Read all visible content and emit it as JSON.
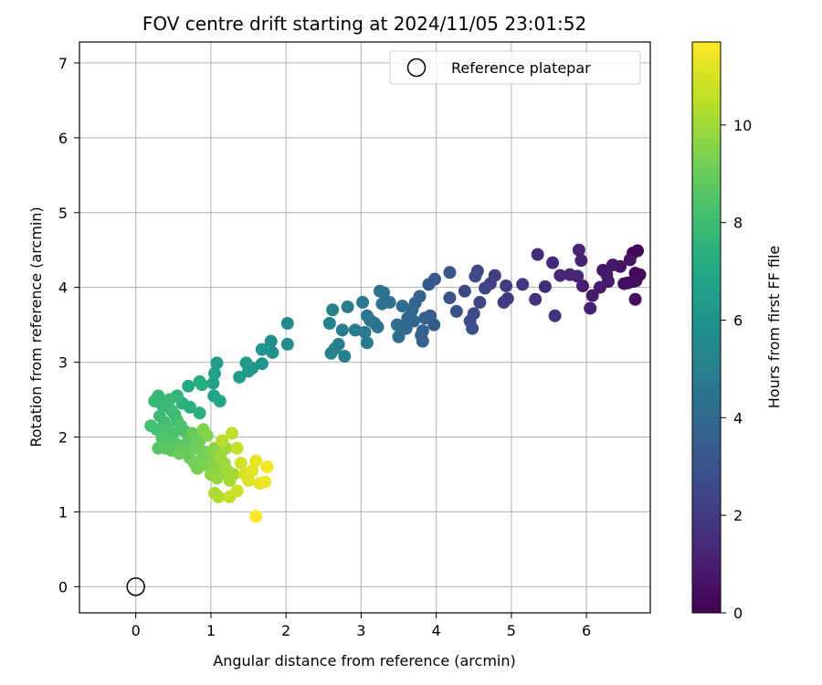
{
  "chart_data": {
    "type": "scatter",
    "title": "FOV centre drift starting at 2024/11/05 23:01:52",
    "xlabel": "Angular distance from reference (arcmin)",
    "ylabel": "Rotation from reference (arcmin)",
    "xlim": [
      -0.75,
      6.85
    ],
    "ylim": [
      -0.35,
      7.28
    ],
    "xticks": [
      "0",
      "1",
      "2",
      "3",
      "4",
      "5",
      "6"
    ],
    "yticks": [
      "0",
      "1",
      "2",
      "3",
      "4",
      "5",
      "6",
      "7"
    ],
    "grid": true,
    "legend": {
      "label": "Reference platepar",
      "placement": "top-right",
      "marker": "open-circle"
    },
    "reference_point": {
      "x": 0,
      "y": 0
    },
    "colorbar": {
      "label": "Hours from first FF file",
      "range": [
        0,
        11.7
      ],
      "ticks": [
        "0",
        "2",
        "4",
        "6",
        "8",
        "10"
      ],
      "colormap": "viridis"
    },
    "series": [
      {
        "points": [
          [
            6.68,
            4.49,
            0.1
          ],
          [
            6.62,
            4.46,
            0.2
          ],
          [
            6.65,
            4.19,
            0.2
          ],
          [
            6.71,
            4.17,
            0.3
          ],
          [
            6.66,
            4.09,
            0.3
          ],
          [
            6.55,
            4.06,
            0.4
          ],
          [
            6.62,
            4.08,
            0.4
          ],
          [
            6.5,
            4.05,
            0.5
          ],
          [
            6.65,
            3.84,
            0.5
          ],
          [
            6.58,
            4.37,
            0.6
          ],
          [
            6.45,
            4.28,
            0.6
          ],
          [
            6.35,
            4.3,
            0.7
          ],
          [
            6.22,
            4.23,
            0.7
          ],
          [
            6.27,
            4.17,
            0.8
          ],
          [
            6.29,
            4.08,
            0.8
          ],
          [
            6.18,
            4.0,
            0.9
          ],
          [
            6.08,
            3.89,
            0.9
          ],
          [
            6.05,
            3.72,
            1.0
          ],
          [
            5.95,
            4.02,
            1.0
          ],
          [
            5.9,
            4.5,
            1.1
          ],
          [
            5.93,
            4.36,
            1.1
          ],
          [
            5.88,
            4.15,
            1.2
          ],
          [
            5.78,
            4.17,
            1.3
          ],
          [
            5.65,
            4.16,
            1.3
          ],
          [
            5.55,
            4.33,
            1.4
          ],
          [
            5.35,
            4.44,
            1.5
          ],
          [
            5.45,
            4.01,
            1.5
          ],
          [
            5.32,
            3.84,
            1.6
          ],
          [
            5.58,
            3.62,
            1.7
          ],
          [
            5.15,
            4.04,
            1.8
          ],
          [
            4.95,
            3.85,
            1.9
          ],
          [
            4.9,
            3.8,
            2.0
          ],
          [
            4.93,
            4.02,
            2.1
          ],
          [
            4.78,
            4.16,
            2.2
          ],
          [
            4.72,
            4.05,
            2.2
          ],
          [
            4.65,
            3.99,
            2.3
          ],
          [
            4.58,
            3.8,
            2.4
          ],
          [
            4.52,
            4.15,
            2.5
          ],
          [
            4.55,
            4.22,
            2.5
          ],
          [
            4.38,
            3.95,
            2.6
          ],
          [
            4.5,
            3.65,
            2.7
          ],
          [
            4.45,
            3.55,
            2.8
          ],
          [
            4.48,
            3.45,
            2.8
          ],
          [
            4.27,
            3.68,
            2.9
          ],
          [
            4.18,
            3.86,
            3.0
          ],
          [
            4.18,
            4.2,
            3.1
          ],
          [
            3.98,
            4.11,
            3.2
          ],
          [
            3.9,
            4.04,
            3.3
          ],
          [
            3.97,
            3.5,
            3.4
          ],
          [
            3.92,
            3.62,
            3.4
          ],
          [
            3.85,
            3.59,
            3.5
          ],
          [
            3.82,
            3.42,
            3.6
          ],
          [
            3.82,
            3.28,
            3.6
          ],
          [
            3.8,
            3.36,
            3.7
          ],
          [
            3.78,
            3.88,
            3.8
          ],
          [
            3.72,
            3.79,
            3.8
          ],
          [
            3.68,
            3.7,
            3.9
          ],
          [
            3.7,
            3.55,
            3.9
          ],
          [
            3.62,
            3.59,
            4.0
          ],
          [
            3.6,
            3.45,
            4.1
          ],
          [
            3.55,
            3.75,
            4.1
          ],
          [
            3.48,
            3.5,
            4.2
          ],
          [
            3.5,
            3.34,
            4.2
          ],
          [
            3.38,
            3.8,
            4.3
          ],
          [
            3.3,
            3.93,
            4.3
          ],
          [
            3.25,
            3.95,
            4.4
          ],
          [
            3.28,
            3.78,
            4.4
          ],
          [
            3.22,
            3.47,
            4.5
          ],
          [
            3.18,
            3.52,
            4.5
          ],
          [
            3.12,
            3.56,
            4.6
          ],
          [
            3.08,
            3.62,
            4.6
          ],
          [
            3.05,
            3.4,
            4.7
          ],
          [
            3.02,
            3.8,
            4.7
          ],
          [
            3.08,
            3.26,
            4.8
          ],
          [
            2.92,
            3.43,
            4.8
          ],
          [
            2.82,
            3.74,
            4.9
          ],
          [
            2.75,
            3.43,
            4.9
          ],
          [
            2.78,
            3.08,
            5.0
          ],
          [
            2.7,
            3.24,
            5.0
          ],
          [
            2.62,
            3.7,
            5.1
          ],
          [
            2.65,
            3.18,
            5.1
          ],
          [
            2.58,
            3.52,
            5.2
          ],
          [
            2.6,
            3.12,
            5.2
          ],
          [
            2.02,
            3.52,
            5.5
          ],
          [
            2.02,
            3.24,
            5.6
          ],
          [
            1.8,
            3.28,
            5.7
          ],
          [
            1.82,
            3.13,
            5.8
          ],
          [
            1.68,
            3.17,
            5.9
          ],
          [
            1.68,
            2.98,
            6.0
          ],
          [
            1.55,
            2.92,
            6.1
          ],
          [
            1.5,
            2.88,
            6.2
          ],
          [
            1.47,
            2.99,
            6.3
          ],
          [
            1.38,
            2.8,
            6.4
          ],
          [
            1.08,
            2.99,
            6.5
          ],
          [
            1.05,
            2.85,
            6.6
          ],
          [
            1.03,
            2.72,
            6.7
          ],
          [
            1.04,
            2.55,
            6.8
          ],
          [
            1.12,
            2.48,
            6.9
          ],
          [
            0.85,
            2.74,
            7.0
          ],
          [
            0.7,
            2.68,
            7.1
          ],
          [
            0.88,
            2.7,
            7.2
          ],
          [
            0.72,
            2.4,
            7.3
          ],
          [
            0.85,
            2.32,
            7.4
          ],
          [
            0.62,
            2.45,
            7.5
          ],
          [
            0.55,
            2.55,
            7.6
          ],
          [
            0.3,
            2.55,
            7.7
          ],
          [
            0.35,
            2.43,
            7.7
          ],
          [
            0.25,
            2.48,
            7.8
          ],
          [
            0.4,
            2.42,
            7.8
          ],
          [
            0.45,
            2.5,
            7.9
          ],
          [
            0.48,
            2.35,
            7.9
          ],
          [
            0.52,
            2.3,
            8.0
          ],
          [
            0.32,
            2.28,
            8.0
          ],
          [
            0.38,
            2.2,
            8.1
          ],
          [
            0.55,
            2.22,
            8.1
          ],
          [
            0.2,
            2.15,
            8.2
          ],
          [
            0.28,
            2.1,
            8.2
          ],
          [
            0.42,
            2.12,
            8.3
          ],
          [
            0.5,
            2.05,
            8.3
          ],
          [
            0.6,
            2.15,
            8.4
          ],
          [
            0.65,
            2.08,
            8.4
          ],
          [
            0.35,
            1.98,
            8.5
          ],
          [
            0.45,
            1.95,
            8.5
          ],
          [
            0.55,
            1.9,
            8.6
          ],
          [
            0.3,
            1.85,
            8.6
          ],
          [
            0.4,
            1.85,
            8.7
          ],
          [
            0.48,
            1.82,
            8.7
          ],
          [
            0.62,
            1.88,
            8.8
          ],
          [
            0.7,
            1.95,
            8.8
          ],
          [
            0.75,
            2.05,
            8.9
          ],
          [
            0.68,
            1.8,
            8.9
          ],
          [
            0.58,
            1.78,
            9.0
          ],
          [
            0.72,
            1.72,
            9.0
          ],
          [
            0.8,
            1.85,
            9.1
          ],
          [
            0.85,
            1.95,
            9.1
          ],
          [
            0.78,
            1.65,
            9.2
          ],
          [
            0.88,
            1.7,
            9.2
          ],
          [
            0.92,
            1.8,
            9.3
          ],
          [
            0.82,
            1.58,
            9.3
          ],
          [
            0.95,
            1.62,
            9.4
          ],
          [
            1.0,
            1.75,
            9.4
          ],
          [
            0.9,
            2.1,
            9.5
          ],
          [
            0.95,
            2.02,
            9.5
          ],
          [
            1.05,
            1.85,
            9.6
          ],
          [
            1.05,
            1.65,
            9.6
          ],
          [
            1.1,
            1.55,
            9.7
          ],
          [
            1.0,
            1.5,
            9.7
          ],
          [
            1.08,
            1.45,
            9.8
          ],
          [
            1.15,
            1.52,
            9.8
          ],
          [
            1.12,
            1.75,
            9.9
          ],
          [
            1.18,
            1.65,
            9.9
          ],
          [
            1.2,
            1.85,
            10.0
          ],
          [
            1.22,
            1.55,
            10.0
          ],
          [
            1.25,
            1.42,
            10.1
          ],
          [
            1.3,
            1.5,
            10.1
          ],
          [
            1.05,
            1.25,
            10.2
          ],
          [
            1.1,
            1.2,
            10.3
          ],
          [
            1.15,
            1.95,
            10.4
          ],
          [
            1.28,
            2.05,
            10.5
          ],
          [
            1.35,
            1.85,
            10.6
          ],
          [
            1.25,
            1.2,
            10.7
          ],
          [
            1.35,
            1.28,
            10.8
          ],
          [
            1.4,
            1.65,
            10.9
          ],
          [
            1.45,
            1.5,
            11.0
          ],
          [
            1.5,
            1.42,
            11.1
          ],
          [
            1.55,
            1.55,
            11.2
          ],
          [
            1.65,
            1.38,
            11.3
          ],
          [
            1.6,
            1.68,
            11.3
          ],
          [
            1.72,
            1.4,
            11.4
          ],
          [
            1.75,
            1.6,
            11.5
          ],
          [
            1.6,
            0.94,
            11.6
          ]
        ]
      }
    ]
  }
}
